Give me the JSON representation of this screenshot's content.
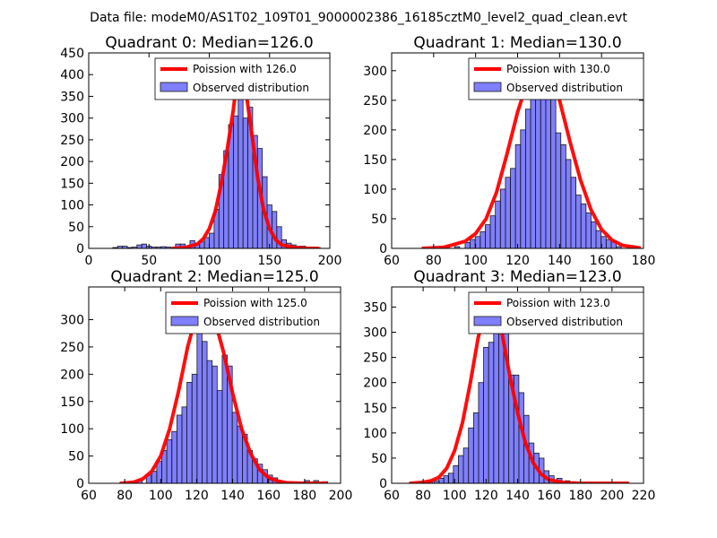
{
  "figure": {
    "suptitle": "Data file: modeM0/AS1T02_109T01_9000002386_16185cztM0_level2_quad_clean.evt"
  },
  "chart_data": [
    {
      "type": "bar",
      "title": "Quadrant 0: Median=126.0",
      "median": 126.0,
      "xlim": [
        0,
        200
      ],
      "ylim": [
        0,
        450
      ],
      "xticks": [
        0,
        50,
        100,
        150,
        200
      ],
      "yticks": [
        0,
        50,
        100,
        150,
        200,
        250,
        300,
        350,
        400,
        450
      ],
      "legend": [
        "Poission with 126.0",
        "Observed distribution"
      ],
      "bin_width": 4,
      "hist_x": [
        20,
        24,
        28,
        32,
        36,
        40,
        44,
        48,
        52,
        56,
        60,
        64,
        68,
        72,
        76,
        80,
        84,
        88,
        92,
        96,
        100,
        104,
        108,
        112,
        116,
        120,
        124,
        128,
        132,
        136,
        140,
        144,
        148,
        152,
        156,
        160,
        164,
        168,
        172,
        176,
        180,
        184,
        188
      ],
      "hist_y": [
        2,
        5,
        5,
        2,
        3,
        8,
        10,
        5,
        3,
        3,
        4,
        3,
        2,
        10,
        10,
        5,
        18,
        10,
        15,
        25,
        35,
        90,
        170,
        225,
        285,
        305,
        375,
        300,
        325,
        260,
        230,
        165,
        100,
        85,
        50,
        20,
        12,
        8,
        5,
        5,
        3,
        2,
        2
      ],
      "curve_x": [
        70,
        80,
        90,
        95,
        100,
        105,
        110,
        115,
        120,
        123,
        126,
        129,
        132,
        136,
        140,
        145,
        150,
        155,
        160,
        170,
        180,
        190
      ],
      "curve_y": [
        0,
        2,
        10,
        22,
        45,
        85,
        150,
        230,
        320,
        390,
        430,
        395,
        330,
        250,
        165,
        90,
        45,
        20,
        8,
        2,
        0,
        0
      ]
    },
    {
      "type": "bar",
      "title": "Quadrant 1: Median=130.0",
      "median": 130.0,
      "xlim": [
        60,
        180
      ],
      "ylim": [
        0,
        330
      ],
      "xticks": [
        60,
        80,
        100,
        120,
        140,
        160,
        180
      ],
      "yticks": [
        0,
        50,
        100,
        150,
        200,
        250,
        300
      ],
      "legend": [
        "Poission with 130.0",
        "Observed distribution"
      ],
      "bin_width": 2.4,
      "hist_x": [
        85,
        90,
        95,
        97.4,
        99.8,
        102.2,
        104.6,
        107,
        109.4,
        111.8,
        114.2,
        116.6,
        119,
        121.4,
        123.8,
        126.2,
        128.6,
        131,
        133.4,
        135.8,
        138.2,
        140.6,
        143,
        145.4,
        147.8,
        150.2,
        152.6,
        155,
        157.4,
        159.8,
        162.2,
        164.6,
        167
      ],
      "hist_y": [
        2,
        3,
        10,
        15,
        20,
        28,
        40,
        55,
        80,
        100,
        120,
        135,
        175,
        200,
        235,
        255,
        275,
        310,
        280,
        265,
        195,
        175,
        150,
        120,
        90,
        75,
        60,
        45,
        30,
        20,
        15,
        12,
        3
      ],
      "curve_x": [
        75,
        85,
        95,
        100,
        105,
        110,
        115,
        120,
        125,
        130,
        135,
        140,
        145,
        150,
        155,
        160,
        165,
        170,
        178
      ],
      "curve_y": [
        0,
        2,
        12,
        25,
        50,
        95,
        160,
        230,
        285,
        312,
        295,
        250,
        180,
        115,
        65,
        32,
        14,
        5,
        1
      ]
    },
    {
      "type": "bar",
      "title": "Quadrant 2: Median=125.0",
      "median": 125.0,
      "xlim": [
        60,
        200
      ],
      "ylim": [
        0,
        360
      ],
      "xticks": [
        60,
        80,
        100,
        120,
        140,
        160,
        180,
        200
      ],
      "yticks": [
        0,
        50,
        100,
        150,
        200,
        250,
        300
      ],
      "legend": [
        "Poission with 125.0",
        "Observed distribution"
      ],
      "bin_width": 2.8,
      "hist_x": [
        82,
        87,
        92,
        95,
        97.8,
        100.6,
        103.4,
        106.2,
        109,
        111.8,
        114.6,
        117.4,
        120.2,
        123,
        125.8,
        128.6,
        131.4,
        134.2,
        137,
        139.8,
        142.6,
        145.4,
        148.2,
        151,
        153.8,
        156.6,
        159.4,
        162.2,
        165,
        170,
        175,
        180,
        185,
        190
      ],
      "hist_y": [
        2,
        5,
        15,
        22,
        40,
        60,
        80,
        95,
        125,
        140,
        185,
        200,
        275,
        260,
        225,
        215,
        170,
        235,
        215,
        130,
        105,
        90,
        60,
        45,
        35,
        25,
        15,
        10,
        5,
        3,
        2,
        5,
        5,
        3
      ],
      "curve_x": [
        78,
        85,
        90,
        95,
        100,
        105,
        110,
        115,
        120,
        125,
        130,
        135,
        140,
        145,
        150,
        155,
        160,
        165,
        170,
        180,
        192
      ],
      "curve_y": [
        0,
        2,
        8,
        22,
        50,
        100,
        170,
        250,
        310,
        328,
        300,
        240,
        165,
        100,
        55,
        25,
        10,
        4,
        1,
        0,
        0
      ]
    },
    {
      "type": "bar",
      "title": "Quadrant 3: Median=123.0",
      "median": 123.0,
      "xlim": [
        60,
        220
      ],
      "ylim": [
        0,
        390
      ],
      "xticks": [
        60,
        80,
        100,
        120,
        140,
        160,
        180,
        200,
        220
      ],
      "yticks": [
        0,
        50,
        100,
        150,
        200,
        250,
        300,
        350
      ],
      "legend": [
        "Poission with 123.0",
        "Observed distribution"
      ],
      "bin_width": 3.2,
      "hist_x": [
        78,
        83,
        87,
        90,
        93,
        96,
        99.2,
        102.4,
        105.6,
        108.8,
        112,
        115.2,
        118.4,
        121.6,
        124.8,
        128,
        131.2,
        134.4,
        137.6,
        140.8,
        144,
        147.2,
        150.4,
        153.6,
        156.8,
        160,
        165,
        170,
        175,
        185,
        195,
        205
      ],
      "hist_y": [
        2,
        3,
        5,
        10,
        15,
        20,
        35,
        55,
        70,
        110,
        140,
        200,
        270,
        280,
        300,
        360,
        300,
        215,
        215,
        180,
        135,
        80,
        60,
        50,
        25,
        15,
        10,
        5,
        3,
        2,
        2,
        2
      ],
      "curve_x": [
        72,
        80,
        85,
        90,
        95,
        100,
        105,
        110,
        115,
        120,
        123,
        126,
        130,
        135,
        140,
        145,
        150,
        155,
        160,
        170,
        180,
        200,
        210
      ],
      "curve_y": [
        0,
        2,
        5,
        12,
        30,
        65,
        120,
        200,
        290,
        345,
        367,
        350,
        300,
        215,
        140,
        80,
        40,
        18,
        7,
        1,
        0,
        0,
        0
      ]
    }
  ]
}
